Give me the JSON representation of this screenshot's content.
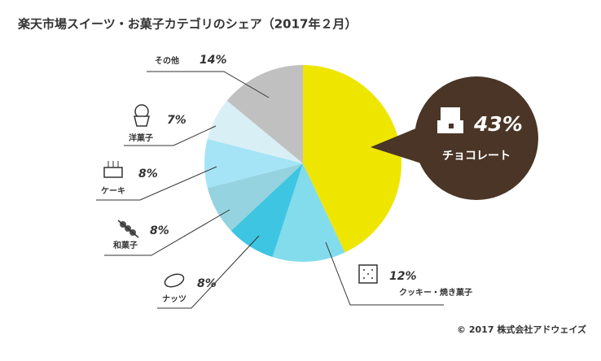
{
  "chart_data": {
    "type": "pie",
    "title": "楽天市場スイーツ・お菓子カテゴリのシェア（2017年２月）",
    "categories": [
      "チョコレート",
      "クッキー・焼き菓子",
      "ナッツ",
      "和菓子",
      "ケーキ",
      "洋菓子",
      "その他"
    ],
    "values": [
      43,
      12,
      8,
      8,
      8,
      7,
      14
    ],
    "value_labels": [
      "43%",
      "12%",
      "8%",
      "8%",
      "8%",
      "7%",
      "14%"
    ],
    "colors": [
      "#efe600",
      "#82dcec",
      "#3ec5e2",
      "#94d3df",
      "#a4e4f6",
      "#d8eff5",
      "#c0c0c0"
    ],
    "source": "© 2017 株式会社アドウェイズ"
  }
}
